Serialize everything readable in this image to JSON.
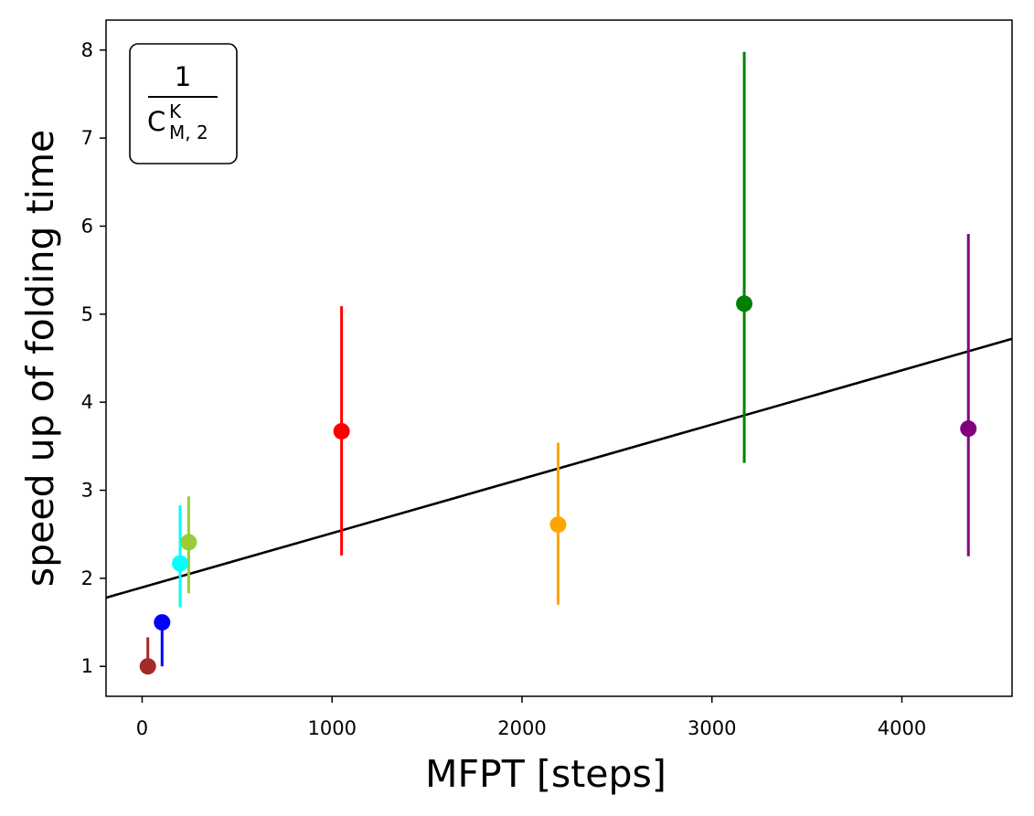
{
  "chart_data": {
    "type": "scatter",
    "title": "",
    "xlabel": "MFPT [steps]",
    "ylabel": "speed up of folding time",
    "xlim": [
      -190,
      4580
    ],
    "ylim": [
      0.66,
      8.34
    ],
    "xticks": [
      0,
      1000,
      2000,
      3000,
      4000
    ],
    "yticks": [
      1,
      2,
      3,
      4,
      5,
      6,
      7,
      8
    ],
    "grid": false,
    "legend": {
      "placement": "top-left",
      "numerator": "1",
      "base": "C",
      "superscript": "K",
      "subscript": "M, 2"
    },
    "points": [
      {
        "x": 30,
        "y": 1.0,
        "yerr_low": 1.0,
        "yerr_high": 1.33,
        "color": "#a52a2a"
      },
      {
        "x": 105,
        "y": 1.5,
        "yerr_low": 1.0,
        "yerr_high": 1.5,
        "color": "#0000ff"
      },
      {
        "x": 200,
        "y": 2.17,
        "yerr_low": 1.67,
        "yerr_high": 2.83,
        "color": "#00ffff"
      },
      {
        "x": 245,
        "y": 2.41,
        "yerr_low": 1.83,
        "yerr_high": 2.93,
        "color": "#9acd32"
      },
      {
        "x": 1050,
        "y": 3.67,
        "yerr_low": 2.26,
        "yerr_high": 5.09,
        "color": "#ff0000"
      },
      {
        "x": 2190,
        "y": 2.61,
        "yerr_low": 1.7,
        "yerr_high": 3.54,
        "color": "#ffa500"
      },
      {
        "x": 3170,
        "y": 5.12,
        "yerr_low": 3.31,
        "yerr_high": 7.98,
        "color": "#008000"
      },
      {
        "x": 4350,
        "y": 3.7,
        "yerr_low": 2.25,
        "yerr_high": 5.91,
        "color": "#800080"
      }
    ],
    "fit_line": {
      "x": [
        -190,
        4580
      ],
      "y": [
        1.78,
        4.72
      ],
      "color": "#000000"
    }
  }
}
